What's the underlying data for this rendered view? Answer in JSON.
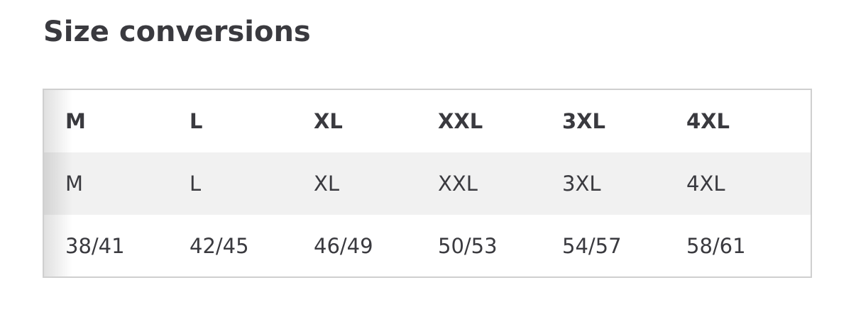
{
  "title": "Size conversions",
  "table": {
    "header": [
      "M",
      "L",
      "XL",
      "XXL",
      "3XL",
      "4XL"
    ],
    "rows": [
      [
        "M",
        "L",
        "XL",
        "XXL",
        "3XL",
        "4XL"
      ],
      [
        "38/41",
        "42/45",
        "46/49",
        "50/53",
        "54/57",
        "58/61"
      ]
    ]
  }
}
